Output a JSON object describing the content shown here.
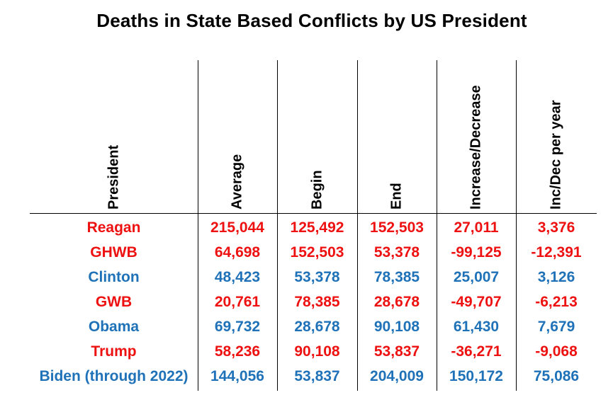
{
  "chart_data": {
    "type": "table",
    "title": "Deaths in State Based Conflicts by US President",
    "columns": [
      "President",
      "Average",
      "Begin",
      "End",
      "Increase/Decrease",
      "Inc/Dec per year"
    ],
    "rows": [
      {
        "president": "Reagan",
        "average": "215,044",
        "begin": "125,492",
        "end": "152,503",
        "change": "27,011",
        "per_year": "3,376",
        "party_color": "#ee1111"
      },
      {
        "president": "GHWB",
        "average": "64,698",
        "begin": "152,503",
        "end": "53,378",
        "change": "-99,125",
        "per_year": "-12,391",
        "party_color": "#ee1111"
      },
      {
        "president": "Clinton",
        "average": "48,423",
        "begin": "53,378",
        "end": "78,385",
        "change": "25,007",
        "per_year": "3,126",
        "party_color": "#1f72b8"
      },
      {
        "president": "GWB",
        "average": "20,761",
        "begin": "78,385",
        "end": "28,678",
        "change": "-49,707",
        "per_year": "-6,213",
        "party_color": "#ee1111"
      },
      {
        "president": "Obama",
        "average": "69,732",
        "begin": "28,678",
        "end": "90,108",
        "change": "61,430",
        "per_year": "7,679",
        "party_color": "#1f72b8"
      },
      {
        "president": "Trump",
        "average": "58,236",
        "begin": "90,108",
        "end": "53,837",
        "change": "-36,271",
        "per_year": "-9,068",
        "party_color": "#ee1111"
      },
      {
        "president": "Biden (through 2022)",
        "average": "144,056",
        "begin": "53,837",
        "end": "204,009",
        "change": "150,172",
        "per_year": "75,086",
        "party_color": "#1f72b8"
      }
    ]
  }
}
